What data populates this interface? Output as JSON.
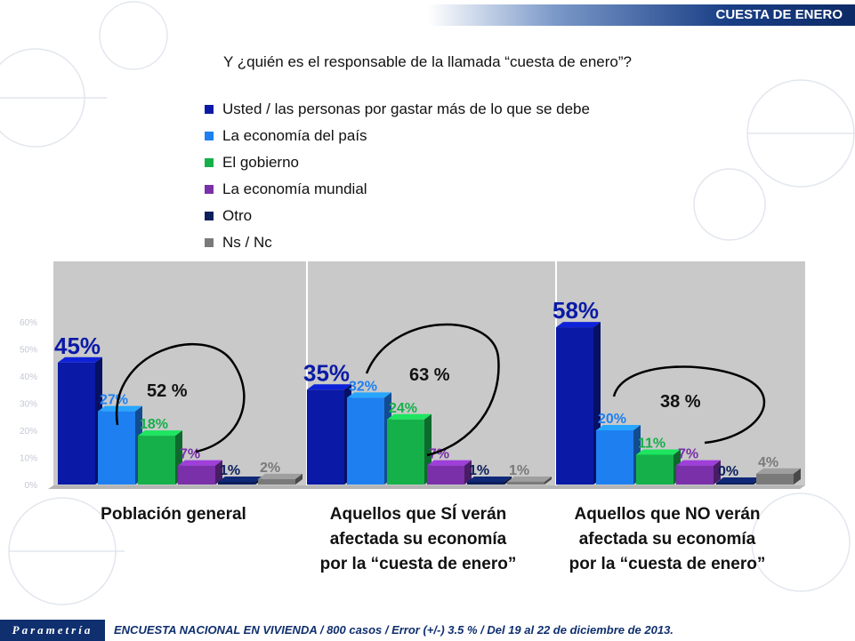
{
  "banner": {
    "title": "CUESTA DE ENERO"
  },
  "chart_data": {
    "type": "bar",
    "title": "Y ¿quién es el responsable de la llamada “cuesta de enero”?",
    "legend_position": "top",
    "series": [
      {
        "name": "Usted / las personas por gastar más de lo que se debe",
        "color": "#0a1aa6",
        "values": [
          45,
          35,
          58
        ]
      },
      {
        "name": "La economía del país",
        "color": "#1e7ff0",
        "values": [
          27,
          32,
          20
        ]
      },
      {
        "name": "El gobierno",
        "color": "#16b04a",
        "values": [
          18,
          24,
          11
        ]
      },
      {
        "name": "La economía mundial",
        "color": "#7a30a8",
        "values": [
          7,
          7,
          7
        ]
      },
      {
        "name": "Otro",
        "color": "#0c1f5c",
        "values": [
          1,
          1,
          0
        ]
      },
      {
        "name": "Ns / Nc",
        "color": "#7a7a7a",
        "values": [
          2,
          1,
          4
        ]
      }
    ],
    "groups": [
      {
        "label": "Población general",
        "annotation": "52 %"
      },
      {
        "label": "Aquellos que SÍ verán\nafectada su economía\npor la “cuesta de enero”",
        "annotation": "63 %"
      },
      {
        "label": "Aquellos que NO verán\nafectada su economía\npor la “cuesta de enero”",
        "annotation": "38 %"
      }
    ],
    "y_ticks": [
      "0%",
      "10%",
      "20%",
      "30%",
      "40%",
      "50%",
      "60%"
    ],
    "ylim": [
      0,
      60
    ]
  },
  "footer": {
    "logo": "Parametría",
    "text": "ENCUESTA NACIONAL EN VIVIENDA / 800 casos / Error (+/-) 3.5 % / Del 19 al 22 de diciembre de 2013."
  }
}
